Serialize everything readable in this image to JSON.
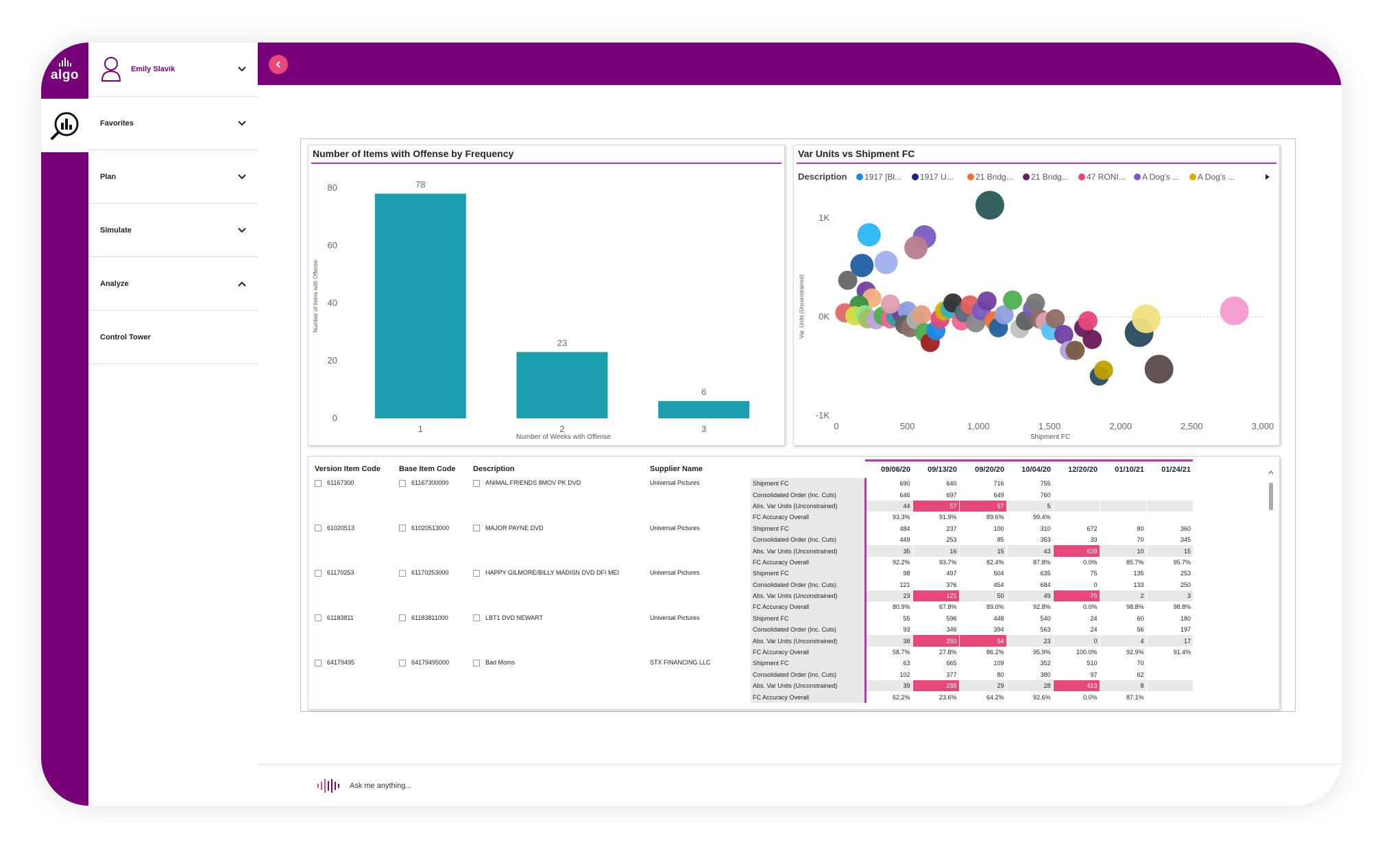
{
  "app": {
    "logo_text": "algo"
  },
  "user": {
    "name": "Emily Slavik"
  },
  "menu": [
    {
      "label": "Favorites",
      "chevron": "down"
    },
    {
      "label": "Plan",
      "chevron": "down"
    },
    {
      "label": "Simulate",
      "chevron": "down"
    },
    {
      "label": "Analyze",
      "chevron": "up"
    },
    {
      "label": "Control Tower",
      "chevron": ""
    }
  ],
  "assistant": {
    "placeholder": "Ask me anything..."
  },
  "colors": {
    "brand": "#780078",
    "accent": "#e8477a",
    "bar": "#1b9eae",
    "highlight_line": "#c030c0"
  },
  "chart_data": [
    {
      "type": "bar",
      "title": "Number of Items with Offense by Frequency",
      "xlabel": "Number of Weeks with Offense",
      "ylabel": "Number of Items with Offense",
      "categories": [
        "1",
        "2",
        "3"
      ],
      "values": [
        78,
        23,
        6
      ],
      "yticks": [
        "0",
        "20",
        "40",
        "60",
        "80"
      ],
      "ylim": [
        0,
        80
      ]
    },
    {
      "type": "scatter",
      "title": "Var Units vs Shipment FC",
      "legend_title": "Description",
      "legend": [
        {
          "name": "1917 [Bl...",
          "color": "#1e88e5"
        },
        {
          "name": "1917 U...",
          "color": "#1a237e"
        },
        {
          "name": "21 Bridg...",
          "color": "#f07030"
        },
        {
          "name": "21 Bridg...",
          "color": "#6a1b5a"
        },
        {
          "name": "47 RONI...",
          "color": "#e8477a"
        },
        {
          "name": "A Dog's ...",
          "color": "#7a5bc0"
        },
        {
          "name": "A Dog's ...",
          "color": "#d4b000"
        }
      ],
      "xlabel": "Shipment FC",
      "ylabel": "Var. Units (Unconstrained)",
      "xticks": [
        "0",
        "500",
        "1,000",
        "1,500",
        "2,000",
        "2,500",
        "3,000"
      ],
      "yticks": [
        "-1K",
        "0K",
        "1K"
      ],
      "xlim": [
        0,
        3000
      ],
      "ylim": [
        -1000,
        1000
      ],
      "points": [
        [
          1080,
          1130,
          "#2a5a55"
        ],
        [
          230,
          830,
          "#29b6f6"
        ],
        [
          620,
          810,
          "#7a5bc0"
        ],
        [
          560,
          700,
          "#b77d90"
        ],
        [
          350,
          550,
          "#a0b0f0"
        ],
        [
          180,
          520,
          "#2060a0"
        ],
        [
          80,
          370,
          "#666666"
        ],
        [
          210,
          260,
          "#7040a0"
        ],
        [
          250,
          190,
          "#f5b080"
        ],
        [
          160,
          120,
          "#3a9040"
        ],
        [
          60,
          40,
          "#e06a6a"
        ],
        [
          130,
          10,
          "#d0e040"
        ],
        [
          200,
          20,
          "#90e090"
        ],
        [
          220,
          -20,
          "#a0c060"
        ],
        [
          280,
          -30,
          "#c0a0e0"
        ],
        [
          330,
          10,
          "#4caf50"
        ],
        [
          380,
          -20,
          "#f06292"
        ],
        [
          420,
          0,
          "#30a0a0"
        ],
        [
          460,
          30,
          "#7040a0"
        ],
        [
          500,
          60,
          "#90a0e0"
        ],
        [
          380,
          130,
          "#e0a0b0"
        ],
        [
          480,
          -80,
          "#606060"
        ],
        [
          520,
          -110,
          "#8d6e63"
        ],
        [
          560,
          -30,
          "#b0b0b0"
        ],
        [
          600,
          20,
          "#e0a080"
        ],
        [
          620,
          -160,
          "#4caf50"
        ],
        [
          660,
          -260,
          "#a02020"
        ],
        [
          700,
          -140,
          "#1e88e5"
        ],
        [
          730,
          -20,
          "#e8477a"
        ],
        [
          760,
          60,
          "#d4b000"
        ],
        [
          800,
          80,
          "#30b0c0"
        ],
        [
          820,
          140,
          "#333333"
        ],
        [
          880,
          -40,
          "#f06292"
        ],
        [
          900,
          40,
          "#546e7a"
        ],
        [
          940,
          120,
          "#e06060"
        ],
        [
          980,
          -60,
          "#888888"
        ],
        [
          1020,
          60,
          "#7a5bc0"
        ],
        [
          1060,
          160,
          "#7040a0"
        ],
        [
          1110,
          -40,
          "#f07030"
        ],
        [
          1140,
          -110,
          "#2060a0"
        ],
        [
          1180,
          20,
          "#90a0e0"
        ],
        [
          1240,
          170,
          "#4caf50"
        ],
        [
          1290,
          -120,
          "#c0c0c0"
        ],
        [
          1330,
          -40,
          "#606060"
        ],
        [
          1380,
          80,
          "#7a5bc0"
        ],
        [
          1400,
          140,
          "#777777"
        ],
        [
          1430,
          -20,
          "#8d6e63"
        ],
        [
          1470,
          -50,
          "#e0a0b0"
        ],
        [
          1510,
          -140,
          "#4fc3f7"
        ],
        [
          1540,
          -20,
          "#8d6e63"
        ],
        [
          1600,
          -180,
          "#7040a0"
        ],
        [
          1640,
          -340,
          "#b0a0e0"
        ],
        [
          1680,
          -340,
          "#7a5a40"
        ],
        [
          1740,
          -110,
          "#6a1b5a"
        ],
        [
          1770,
          -40,
          "#e8477a"
        ],
        [
          1800,
          -230,
          "#6a1b5a"
        ],
        [
          1850,
          -600,
          "#2a4a60"
        ],
        [
          1880,
          -540,
          "#c0a000"
        ],
        [
          2130,
          -160,
          "#2a4a60"
        ],
        [
          2180,
          -20,
          "#f0e080"
        ],
        [
          2270,
          -530,
          "#5a4a4a"
        ],
        [
          2800,
          60,
          "#f59ad0"
        ]
      ]
    }
  ],
  "matrix": {
    "columns": [
      "Version Item Code",
      "Base Item Code",
      "Description",
      "Supplier Name",
      "",
      "09/06/20",
      "09/13/20",
      "09/20/20",
      "10/04/20",
      "12/20/20",
      "01/10/21",
      "01/24/21"
    ],
    "measures": [
      "Shipment FC",
      "Consolidated Order (Inc. Cuts)",
      "Abs. Var Units (Unconstrained)",
      "FC Accuracy Overall"
    ],
    "items": [
      {
        "version": "61167300",
        "base": "61167300000",
        "description": "ANIMAL FRIENDS 8MOV PK DVD",
        "supplier": "Universal Pictures",
        "rows": [
          [
            "690",
            "640",
            "716",
            "755",
            "",
            "",
            ""
          ],
          [
            "646",
            "697",
            "649",
            "760",
            "",
            "",
            ""
          ],
          [
            "44",
            "57",
            "67",
            "5",
            "",
            "",
            ""
          ],
          [
            "93.3%",
            "91.9%",
            "89.6%",
            "99.4%",
            "",
            "",
            ""
          ]
        ],
        "hot": [
          [
            2,
            1
          ],
          [
            2,
            2
          ]
        ]
      },
      {
        "version": "61020513",
        "base": "61020513000",
        "description": "MAJOR PAYNE DVD",
        "supplier": "Universal Pictures",
        "rows": [
          [
            "484",
            "237",
            "100",
            "310",
            "672",
            "80",
            "360"
          ],
          [
            "449",
            "253",
            "85",
            "353",
            "33",
            "70",
            "345"
          ],
          [
            "35",
            "16",
            "15",
            "43",
            "639",
            "10",
            "15"
          ],
          [
            "92.2%",
            "93.7%",
            "82.4%",
            "87.8%",
            "0.0%",
            "85.7%",
            "95.7%"
          ]
        ],
        "hot": [
          [
            2,
            4
          ]
        ]
      },
      {
        "version": "61170253",
        "base": "61170253000",
        "description": "HAPPY GILMORE/BILLY MADISN DVD DFI MEI",
        "supplier": "Universal Pictures",
        "rows": [
          [
            "98",
            "497",
            "504",
            "635",
            "75",
            "135",
            "253"
          ],
          [
            "121",
            "376",
            "454",
            "684",
            "0",
            "133",
            "250"
          ],
          [
            "23",
            "121",
            "50",
            "49",
            "75",
            "2",
            "3"
          ],
          [
            "80.9%",
            "67.8%",
            "89.0%",
            "92.8%",
            "0.0%",
            "98.8%",
            "98.8%"
          ]
        ],
        "hot": [
          [
            2,
            1
          ],
          [
            2,
            4
          ]
        ]
      },
      {
        "version": "61183811",
        "base": "61183811000",
        "description": "LBT1 DVD NEWART",
        "supplier": "Universal Pictures",
        "rows": [
          [
            "55",
            "596",
            "448",
            "540",
            "24",
            "60",
            "180"
          ],
          [
            "93",
            "346",
            "394",
            "563",
            "24",
            "56",
            "197"
          ],
          [
            "38",
            "250",
            "54",
            "23",
            "0",
            "4",
            "17"
          ],
          [
            "58.7%",
            "27.8%",
            "86.2%",
            "95.9%",
            "100.0%",
            "92.9%",
            "91.4%"
          ]
        ],
        "hot": [
          [
            2,
            1
          ],
          [
            2,
            2
          ]
        ]
      },
      {
        "version": "64179495",
        "base": "64179495000",
        "description": "Bad Moms",
        "supplier": "STX FINANCING LLC",
        "rows": [
          [
            "63",
            "665",
            "109",
            "352",
            "510",
            "70",
            ""
          ],
          [
            "102",
            "377",
            "80",
            "380",
            "97",
            "62",
            ""
          ],
          [
            "39",
            "288",
            "29",
            "28",
            "413",
            "8",
            ""
          ],
          [
            "62.2%",
            "23.6%",
            "64.2%",
            "92.6%",
            "0.0%",
            "87.1%",
            ""
          ]
        ],
        "hot": [
          [
            2,
            1
          ],
          [
            2,
            4
          ]
        ]
      }
    ]
  }
}
